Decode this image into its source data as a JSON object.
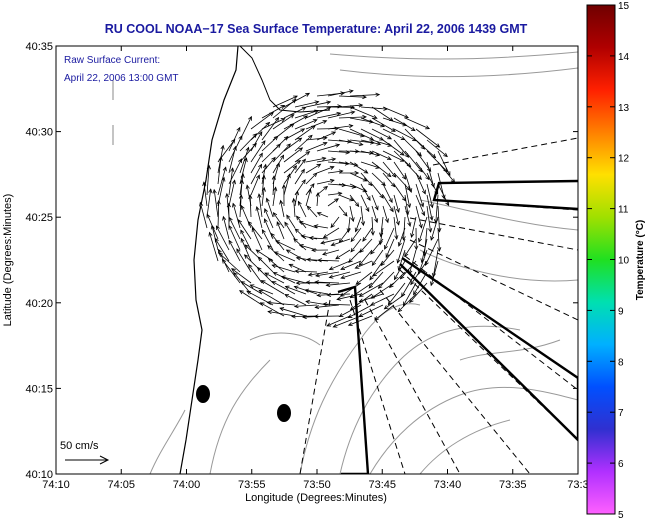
{
  "title": "RU COOL  NOAA−17  Sea Surface Temperature:  April 22, 2006 1439 GMT",
  "annotation": {
    "line1": "Raw Surface Current:",
    "line2": "April 22, 2006 13:00 GMT"
  },
  "scale_label": "50 cm/s",
  "x_axis": {
    "label": "Longitude (Degrees:Minutes)",
    "ticks": [
      "74:10",
      "74:05",
      "74:00",
      "73:55",
      "73:50",
      "73:45",
      "73:40",
      "73:35",
      "73:3"
    ]
  },
  "y_axis": {
    "label": "Latitude (Degrees:Minutes)",
    "ticks": [
      "40:35",
      "40:30",
      "40:25",
      "40:20",
      "40:15",
      "40:10"
    ]
  },
  "colorbar": {
    "label": "Temperature (°C)",
    "ticks": [
      "15",
      "14",
      "13",
      "12",
      "11",
      "10",
      "9",
      "8",
      "7",
      "6",
      "5"
    ],
    "range": [
      5,
      15
    ],
    "colors": [
      "#ff60ff",
      "#b030ff",
      "#3030d0",
      "#0050ff",
      "#00b0ff",
      "#00e0b0",
      "#20e020",
      "#a0e000",
      "#ffe000",
      "#ff8000",
      "#ff2000",
      "#b00000",
      "#700000"
    ]
  },
  "map": {
    "lon_range_min": [
      -74.1667,
      -73.5
    ],
    "lat_range_min": [
      40.1667,
      40.5833
    ],
    "vector_field": "clockwise surface-current eddy"
  }
}
